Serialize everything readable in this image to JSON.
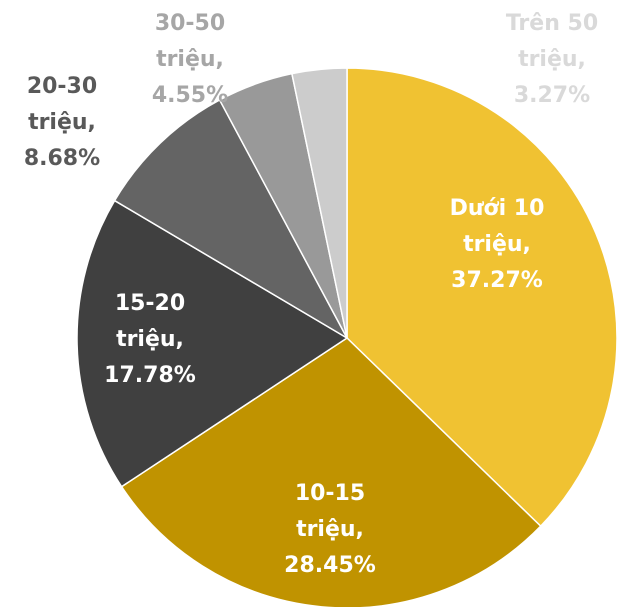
{
  "chart_data": {
    "type": "pie",
    "values": [
      37.27,
      28.45,
      17.78,
      8.68,
      4.55,
      3.27
    ],
    "value_labels": [
      "Dưới 10 triệu, 37.27%",
      "10-15 triệu, 28.45%",
      "15-20 triệu, 17.78%",
      "20-30 triệu, 8.68%",
      "30-50 triệu, 4.55%",
      "Trên 50 triệu, 3.27%"
    ],
    "colors": [
      "#f0c232",
      "#c09300",
      "#404040",
      "#646464",
      "#999999",
      "#cccccc"
    ]
  }
}
